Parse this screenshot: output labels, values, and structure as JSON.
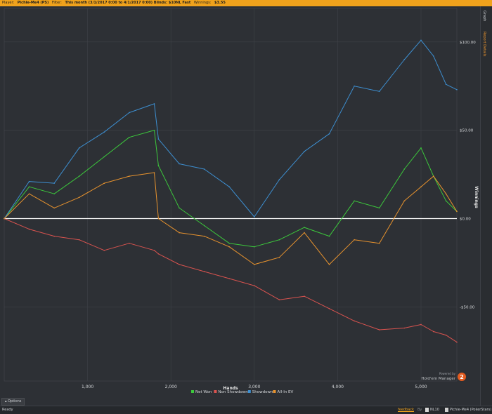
{
  "header": {
    "player_label": "Player:",
    "player_value": "Pichie-Me4 (PS)",
    "filter_label": "Filter:",
    "filter_value": "This month (3/1/2017 0:00 to 4/1/2017 0:00) Blinds: $10NL Fast",
    "winnings_label": "Winnings:",
    "winnings_value": "$3.55"
  },
  "sidebar": {
    "tab_graph": "Graph",
    "tab_details": "Report Details"
  },
  "chart_data": {
    "type": "line",
    "xlabel": "Hands",
    "ylabel": "Winnings",
    "x_ticks": [
      1000,
      2000,
      3000,
      4000,
      5000
    ],
    "x_tick_labels": [
      "1,000",
      "2,000",
      "3,000",
      "4,000",
      "5,000"
    ],
    "y_ticks": [
      100,
      50,
      0,
      -50
    ],
    "y_tick_labels": [
      "$100.00",
      "$50.00",
      "$0.00",
      "-$50.00"
    ],
    "xlim": [
      0,
      5430
    ],
    "ylim": [
      -92,
      119
    ],
    "x": [
      0,
      300,
      600,
      900,
      1200,
      1500,
      1800,
      1850,
      2100,
      2400,
      2700,
      3000,
      3300,
      3600,
      3900,
      4200,
      4500,
      4800,
      5000,
      5150,
      5300,
      5430
    ],
    "series": [
      {
        "name": "Net Won",
        "color": "#3cc83c",
        "values": [
          0,
          18,
          14,
          24,
          35,
          46,
          50,
          30,
          6,
          -4,
          -14,
          -16,
          -12,
          -5,
          -10,
          10,
          6,
          28,
          40,
          24,
          10,
          4
        ]
      },
      {
        "name": "Non Showdown",
        "color": "#d9534f",
        "values": [
          0,
          -6,
          -10,
          -12,
          -18,
          -14,
          -18,
          -20,
          -26,
          -30,
          -34,
          -38,
          -46,
          -44,
          -51,
          -58,
          -63,
          -62,
          -60,
          -64,
          -66,
          -70
        ]
      },
      {
        "name": "Showdown",
        "color": "#3d8fd1",
        "values": [
          0,
          21,
          20,
          40,
          49,
          60,
          65,
          45,
          31,
          28,
          18,
          1,
          22,
          38,
          48,
          75,
          72,
          90,
          101,
          92,
          76,
          73
        ]
      },
      {
        "name": "All-In EV",
        "color": "#e8932e",
        "values": [
          0,
          14,
          6,
          12,
          20,
          24,
          26,
          0,
          -8,
          -10,
          -16,
          -26,
          -22,
          -8,
          -26,
          -12,
          -14,
          10,
          18,
          24,
          14,
          4
        ]
      }
    ],
    "legend_position": "bottom-center",
    "grid": true
  },
  "footer": {
    "options_label": "Options",
    "status_text": "Ready",
    "feedback_label": "feedback",
    "by_label": "By",
    "limit_label": "NL10",
    "player_label": "Pichie-Me4 (PokerStars)",
    "brand_powered": "Powered by",
    "brand_name": "Hold'em Manager",
    "brand_version": "2"
  }
}
